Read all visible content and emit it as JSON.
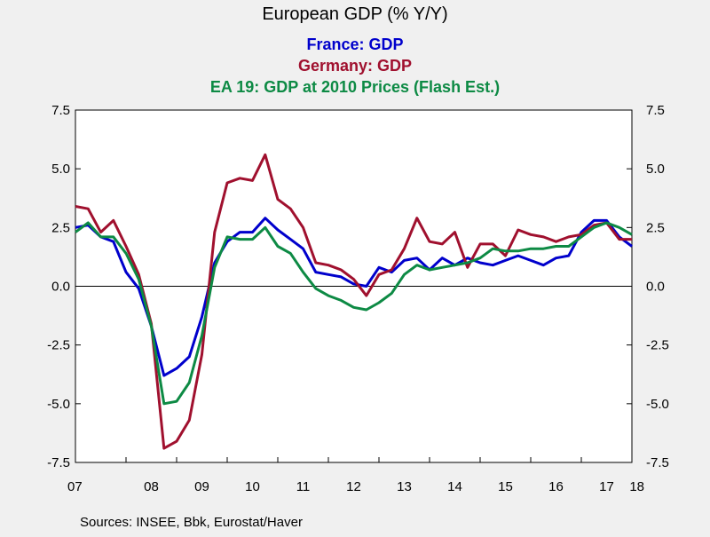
{
  "chart_data": {
    "type": "line",
    "title": "European GDP (% Y/Y)",
    "source": "Sources:  INSEE, Bbk, Eurostat/Haver",
    "ylim": [
      -7.5,
      7.5
    ],
    "yticks": [
      "7.5",
      "5.0",
      "2.5",
      "0.0",
      "-2.5",
      "-5.0",
      "-7.5"
    ],
    "ytick_values": [
      7.5,
      5.0,
      2.5,
      0.0,
      -2.5,
      -5.0,
      -7.5
    ],
    "xlim": [
      2007.0,
      2018.0
    ],
    "xticks": [
      "07",
      "08",
      "09",
      "10",
      "11",
      "12",
      "13",
      "14",
      "15",
      "16",
      "17",
      "18"
    ],
    "xtick_values": [
      2007,
      2008,
      2009,
      2010,
      2011,
      2012,
      2013,
      2014,
      2015,
      2016,
      2017,
      2018
    ],
    "grid": false,
    "zero_line": true,
    "x": [
      2007.0,
      2007.25,
      2007.5,
      2007.75,
      2008.0,
      2008.25,
      2008.5,
      2008.75,
      2009.0,
      2009.25,
      2009.5,
      2009.75,
      2010.0,
      2010.25,
      2010.5,
      2010.75,
      2011.0,
      2011.25,
      2011.5,
      2011.75,
      2012.0,
      2012.25,
      2012.5,
      2012.75,
      2013.0,
      2013.25,
      2013.5,
      2013.75,
      2014.0,
      2014.25,
      2014.5,
      2014.75,
      2015.0,
      2015.25,
      2015.5,
      2015.75,
      2016.0,
      2016.25,
      2016.5,
      2016.75,
      2017.0,
      2017.25,
      2017.5,
      2017.75,
      2018.0
    ],
    "series": [
      {
        "name": "France: GDP",
        "color": "#0000cc",
        "values": [
          2.5,
          2.6,
          2.1,
          1.9,
          0.6,
          -0.1,
          -1.7,
          -3.8,
          -3.5,
          -3.0,
          -1.3,
          1.0,
          1.9,
          2.3,
          2.3,
          2.9,
          2.4,
          2.0,
          1.6,
          0.6,
          0.5,
          0.4,
          0.1,
          0.0,
          0.8,
          0.6,
          1.1,
          1.2,
          0.7,
          1.2,
          0.9,
          1.2,
          1.0,
          0.9,
          1.1,
          1.3,
          1.1,
          0.9,
          1.2,
          1.3,
          2.3,
          2.8,
          2.8,
          2.1,
          1.7
        ]
      },
      {
        "name": "Germany: GDP",
        "color": "#a0102e",
        "values": [
          3.4,
          3.3,
          2.3,
          2.8,
          1.7,
          0.5,
          -1.6,
          -6.9,
          -6.6,
          -5.7,
          -2.9,
          2.3,
          4.4,
          4.6,
          4.5,
          5.6,
          3.7,
          3.3,
          2.5,
          1.0,
          0.9,
          0.7,
          0.3,
          -0.4,
          0.5,
          0.7,
          1.6,
          2.9,
          1.9,
          1.8,
          2.3,
          0.8,
          1.8,
          1.8,
          1.3,
          2.4,
          2.2,
          2.1,
          1.9,
          2.1,
          2.2,
          2.6,
          2.7,
          2.0,
          2.0
        ]
      },
      {
        "name": "EA 19: GDP at 2010 Prices (Flash Est.)",
        "color": "#0d8a44",
        "values": [
          2.3,
          2.7,
          2.1,
          2.1,
          1.4,
          0.3,
          -1.7,
          -5.0,
          -4.9,
          -4.1,
          -2.1,
          0.8,
          2.1,
          2.0,
          2.0,
          2.5,
          1.7,
          1.4,
          0.6,
          -0.1,
          -0.4,
          -0.6,
          -0.9,
          -1.0,
          -0.7,
          -0.3,
          0.5,
          0.9,
          0.7,
          0.8,
          0.9,
          1.0,
          1.2,
          1.6,
          1.5,
          1.5,
          1.6,
          1.6,
          1.7,
          1.7,
          2.1,
          2.5,
          2.7,
          2.5,
          2.2
        ]
      }
    ]
  }
}
